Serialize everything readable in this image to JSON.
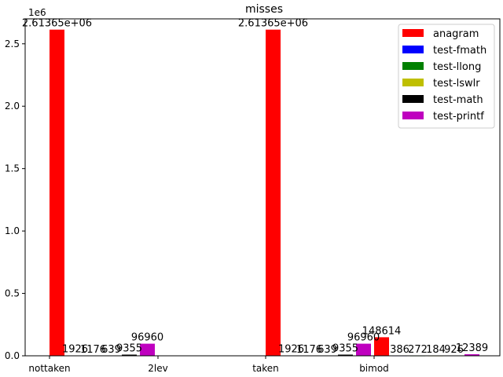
{
  "chart_data": {
    "type": "bar",
    "title": "misses",
    "xlabel": "",
    "ylabel": "",
    "y_multiplier_label": "1e6",
    "ylim": [
      0,
      2700000
    ],
    "yticks": [
      0,
      500000,
      1000000,
      1500000,
      2000000,
      2500000
    ],
    "ytick_labels": [
      "0.0",
      "0.5",
      "1.0",
      "1.5",
      "2.0",
      "2.5"
    ],
    "categories": [
      "nottaken",
      "2lev",
      "taken",
      "bimod"
    ],
    "legend_position": "top-right",
    "series": [
      {
        "name": "anagram",
        "color": "#ff0000",
        "values": [
          2613650,
          0,
          2613650,
          148614
        ],
        "labels": [
          "2.61365e+06",
          "",
          "2.61365e+06",
          "148614"
        ]
      },
      {
        "name": "test-fmath",
        "color": "#0000ff",
        "values": [
          1926,
          0,
          1926,
          386
        ],
        "labels": [
          "1926",
          "",
          "1926",
          "386"
        ]
      },
      {
        "name": "test-llong",
        "color": "#008000",
        "values": [
          1176,
          0,
          1176,
          272
        ],
        "labels": [
          "1176",
          "",
          "1176",
          "272"
        ]
      },
      {
        "name": "test-lswlr",
        "color": "#bfbf00",
        "values": [
          639,
          0,
          639,
          184
        ],
        "labels": [
          "639",
          "",
          "639",
          "184"
        ]
      },
      {
        "name": "test-math",
        "color": "#000000",
        "values": [
          9355,
          0,
          9355,
          926
        ],
        "labels": [
          "9355",
          "",
          "9355",
          "926"
        ]
      },
      {
        "name": "test-printf",
        "color": "#bf00bf",
        "values": [
          96960,
          0,
          96960,
          12389
        ],
        "labels": [
          "96960",
          "",
          "96960",
          "12389"
        ]
      }
    ]
  }
}
